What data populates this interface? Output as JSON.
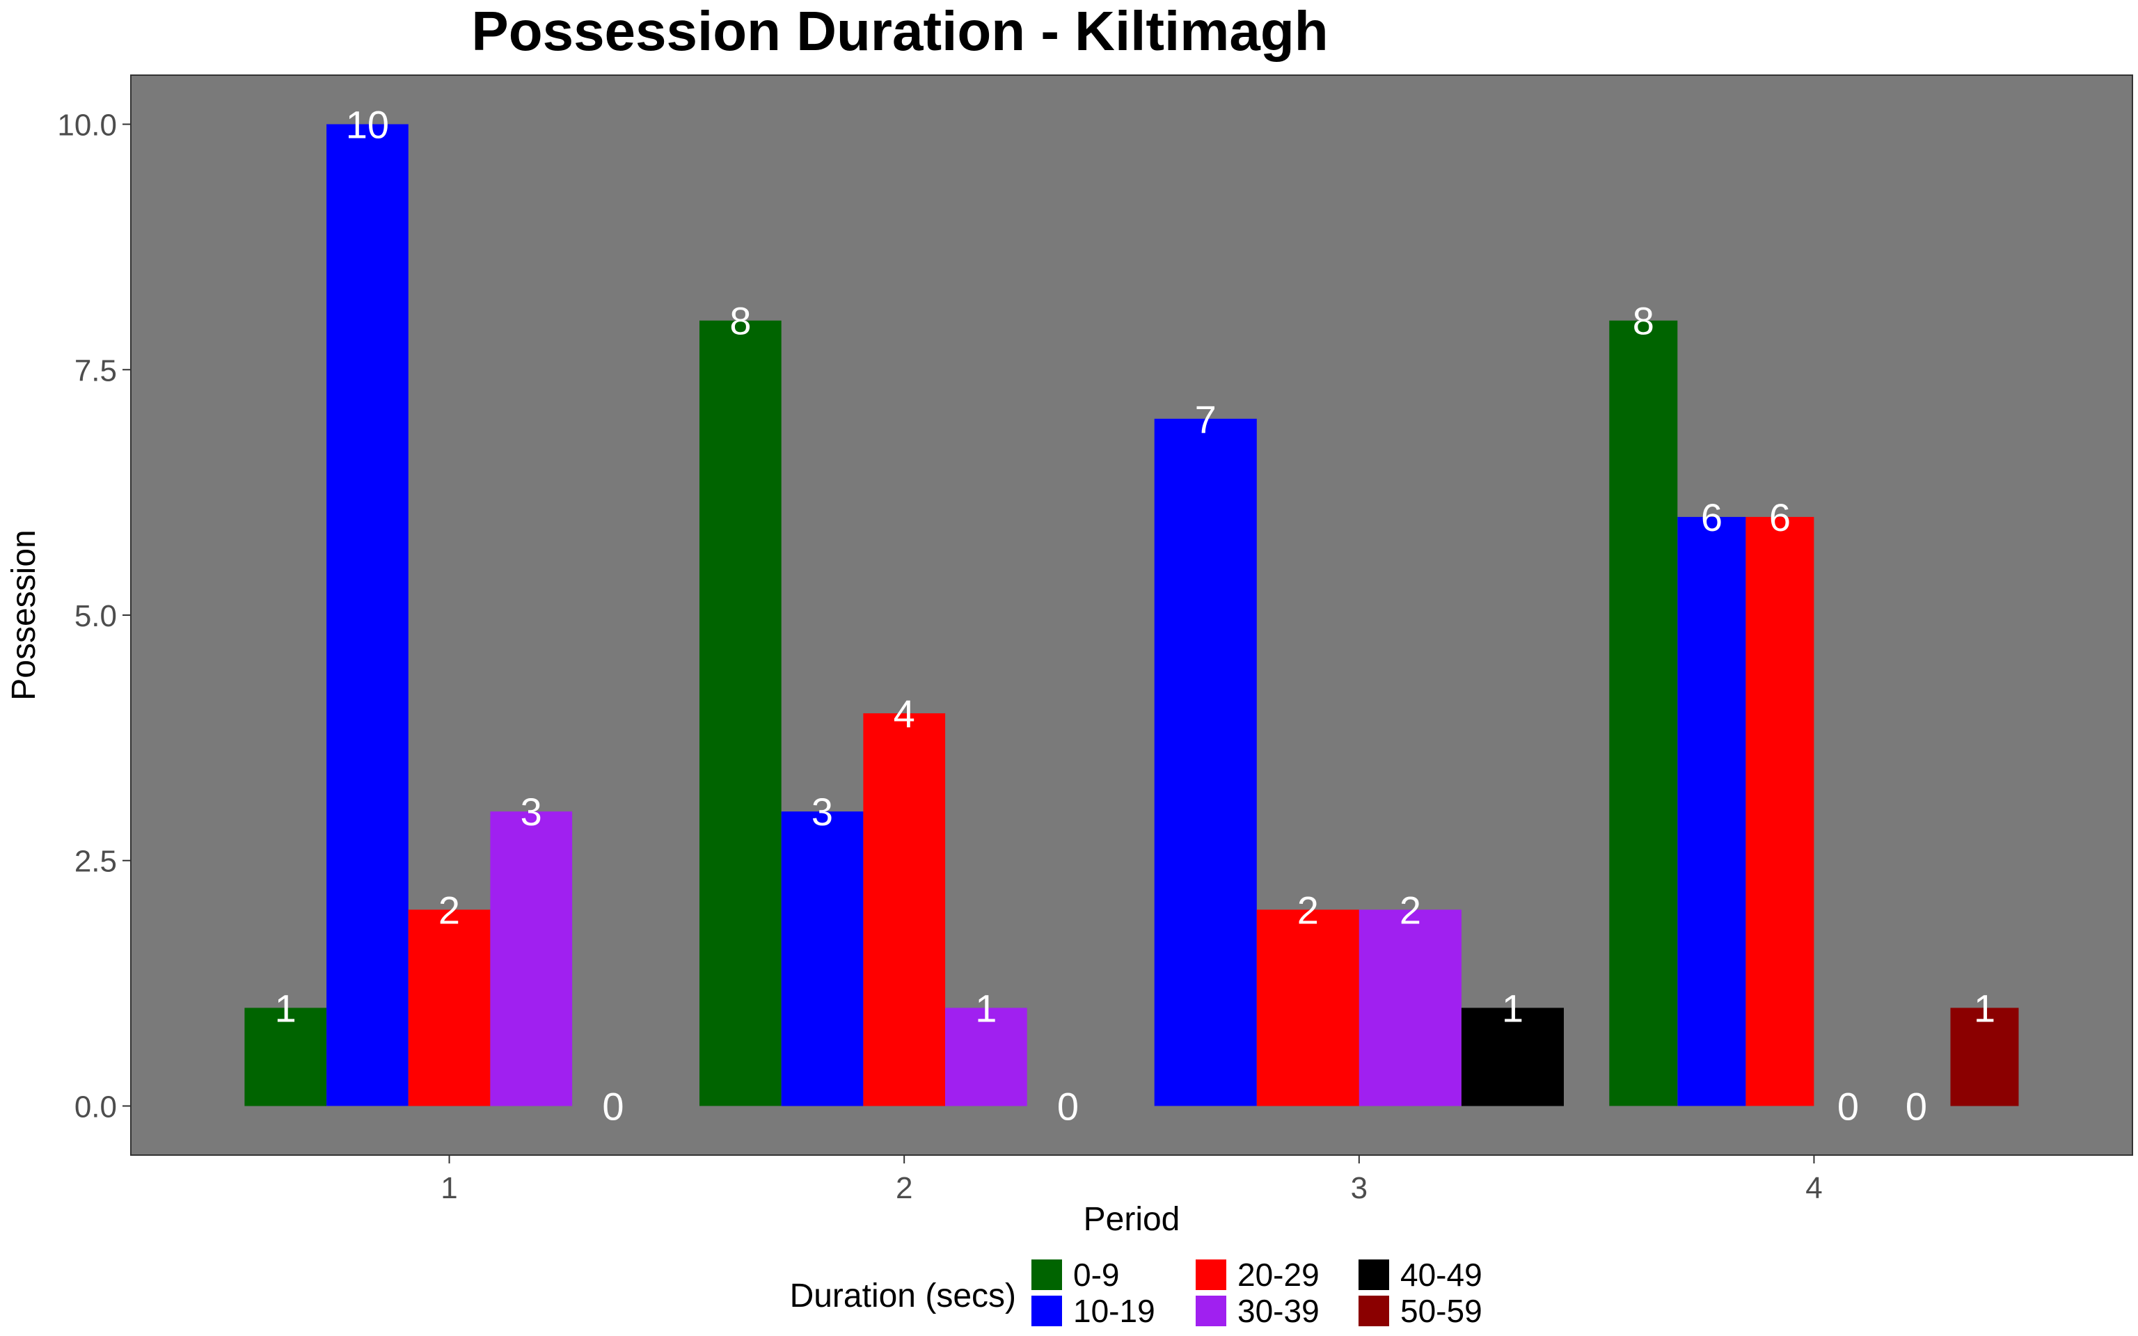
{
  "chart_data": {
    "type": "bar",
    "title": "Possession Duration - Kiltimagh",
    "xlabel": "Period",
    "ylabel": "Possession",
    "categories": [
      "1",
      "2",
      "3",
      "4"
    ],
    "ylim": [
      -0.5,
      10.5
    ],
    "yticks": [
      "0.0",
      "2.5",
      "5.0",
      "7.5",
      "10.0"
    ],
    "ytick_values": [
      0,
      2.5,
      5,
      7.5,
      10
    ],
    "panel_background": "#7a7a7a",
    "grid": false,
    "legend": {
      "title": "Duration (secs)",
      "position": "bottom",
      "items": [
        {
          "name": "0-9",
          "color": "#006400"
        },
        {
          "name": "10-19",
          "color": "#0000ff"
        },
        {
          "name": "20-29",
          "color": "#ff0000"
        },
        {
          "name": "30-39",
          "color": "#a020f0"
        },
        {
          "name": "40-49",
          "color": "#000000"
        },
        {
          "name": "50-59",
          "color": "#8b0000"
        }
      ]
    },
    "groups": [
      {
        "period": "1",
        "bars": [
          {
            "series": "0-9",
            "value": 1
          },
          {
            "series": "10-19",
            "value": 10
          },
          {
            "series": "20-29",
            "value": 2
          },
          {
            "series": "30-39",
            "value": 3
          },
          {
            "series": "40-49",
            "value": 0
          }
        ]
      },
      {
        "period": "2",
        "bars": [
          {
            "series": "0-9",
            "value": 8
          },
          {
            "series": "10-19",
            "value": 3
          },
          {
            "series": "20-29",
            "value": 4
          },
          {
            "series": "30-39",
            "value": 1
          },
          {
            "series": "40-49",
            "value": 0
          }
        ]
      },
      {
        "period": "3",
        "bars": [
          {
            "series": "10-19",
            "value": 7
          },
          {
            "series": "20-29",
            "value": 2
          },
          {
            "series": "30-39",
            "value": 2
          },
          {
            "series": "40-49",
            "value": 1
          }
        ]
      },
      {
        "period": "4",
        "bars": [
          {
            "series": "0-9",
            "value": 8
          },
          {
            "series": "10-19",
            "value": 6
          },
          {
            "series": "20-29",
            "value": 6
          },
          {
            "series": "30-39",
            "value": 0
          },
          {
            "series": "40-49",
            "value": 0
          },
          {
            "series": "50-59",
            "value": 1
          }
        ]
      }
    ]
  }
}
